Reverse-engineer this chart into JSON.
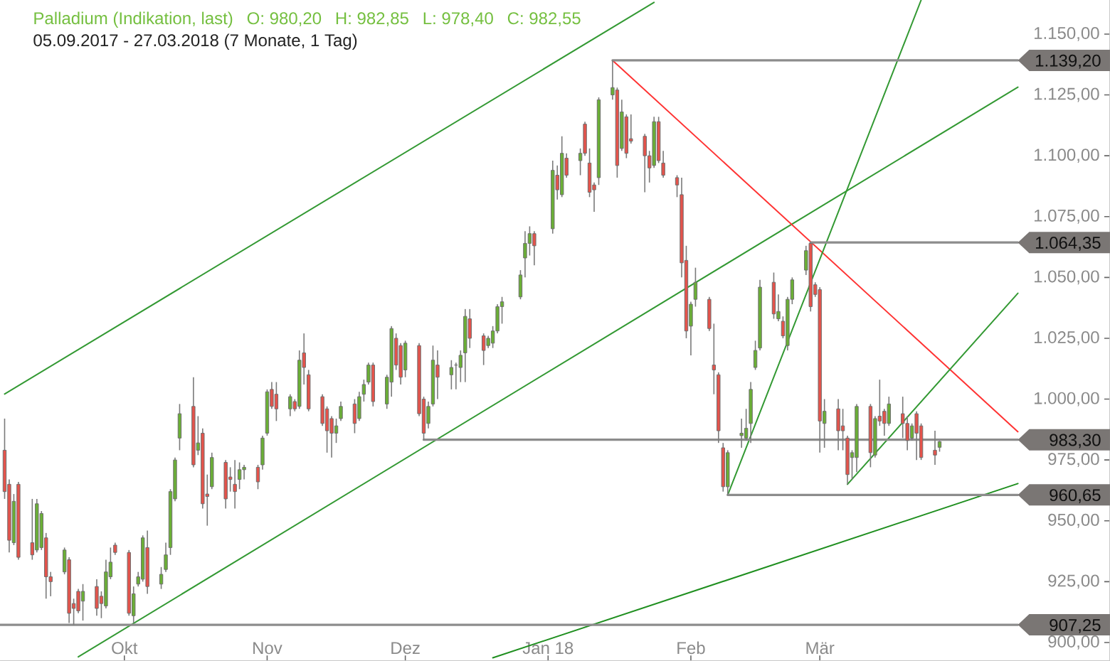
{
  "chart_data": {
    "type": "candlestick",
    "title": "Palladium (Indikation, last)",
    "subtitle": "05.09.2017 - 27.03.2018 (7 Monate, 1 Tag)",
    "annotations": [
      "O: 980,20",
      "H: 982,85",
      "L: 978,40",
      "C: 982,55"
    ],
    "x": [
      "2017-09-05",
      "2017-09-06",
      "2017-09-07",
      "2017-09-08",
      "2017-09-11",
      "2017-09-12",
      "2017-09-13",
      "2017-09-14",
      "2017-09-15",
      "2017-09-18",
      "2017-09-19",
      "2017-09-20",
      "2017-09-21",
      "2017-09-22",
      "2017-09-25",
      "2017-09-26",
      "2017-09-27",
      "2017-09-28",
      "2017-09-29",
      "2017-10-02",
      "2017-10-03",
      "2017-10-04",
      "2017-10-05",
      "2017-10-06",
      "2017-10-09",
      "2017-10-10",
      "2017-10-11",
      "2017-10-12",
      "2017-10-13",
      "2017-10-16",
      "2017-10-17",
      "2017-10-18",
      "2017-10-19",
      "2017-10-20",
      "2017-10-23",
      "2017-10-24",
      "2017-10-25",
      "2017-10-26",
      "2017-10-27",
      "2017-10-30",
      "2017-10-31",
      "2017-11-01",
      "2017-11-02",
      "2017-11-03",
      "2017-11-06",
      "2017-11-07",
      "2017-11-08",
      "2017-11-09",
      "2017-11-10",
      "2017-11-13",
      "2017-11-14",
      "2017-11-15",
      "2017-11-16",
      "2017-11-17",
      "2017-11-20",
      "2017-11-21",
      "2017-11-22",
      "2017-11-23",
      "2017-11-24",
      "2017-11-27",
      "2017-11-28",
      "2017-11-29",
      "2017-11-30",
      "2017-12-01",
      "2017-12-04",
      "2017-12-05",
      "2017-12-06",
      "2017-12-07",
      "2017-12-08",
      "2017-12-11",
      "2017-12-12",
      "2017-12-13",
      "2017-12-14",
      "2017-12-15",
      "2017-12-18",
      "2017-12-19",
      "2017-12-20",
      "2017-12-21",
      "2017-12-22",
      "2017-12-26",
      "2017-12-27",
      "2017-12-28",
      "2017-12-29",
      "2018-01-02",
      "2018-01-03",
      "2018-01-04",
      "2018-01-05",
      "2018-01-08",
      "2018-01-09",
      "2018-01-10",
      "2018-01-11",
      "2018-01-12",
      "2018-01-15",
      "2018-01-16",
      "2018-01-17",
      "2018-01-18",
      "2018-01-19",
      "2018-01-22",
      "2018-01-23",
      "2018-01-24",
      "2018-01-25",
      "2018-01-26",
      "2018-01-29",
      "2018-01-30",
      "2018-01-31",
      "2018-02-01",
      "2018-02-02",
      "2018-02-05",
      "2018-02-06",
      "2018-02-07",
      "2018-02-08",
      "2018-02-09",
      "2018-02-12",
      "2018-02-13",
      "2018-02-14",
      "2018-02-15",
      "2018-02-16",
      "2018-02-19",
      "2018-02-20",
      "2018-02-21",
      "2018-02-22",
      "2018-02-23",
      "2018-02-26",
      "2018-02-27",
      "2018-02-28",
      "2018-03-01",
      "2018-03-02",
      "2018-03-05",
      "2018-03-06",
      "2018-03-07",
      "2018-03-08",
      "2018-03-09",
      "2018-03-12",
      "2018-03-13",
      "2018-03-14",
      "2018-03-15",
      "2018-03-16",
      "2018-03-19",
      "2018-03-20",
      "2018-03-21",
      "2018-03-22",
      "2018-03-23",
      "2018-03-26",
      "2018-03-27"
    ],
    "ohlc": [
      [
        979,
        992,
        959,
        962
      ],
      [
        965,
        967,
        937,
        942
      ],
      [
        941,
        961,
        940,
        958
      ],
      [
        965,
        966,
        934,
        935
      ],
      [
        941,
        959,
        934,
        936
      ],
      [
        938,
        959,
        937,
        957
      ],
      [
        939,
        954,
        938,
        953
      ],
      [
        943,
        945,
        918,
        927
      ],
      [
        927,
        929,
        919,
        925
      ],
      [
        929,
        939,
        928,
        938
      ],
      [
        934,
        935,
        908,
        912
      ],
      [
        916,
        918,
        907.25,
        914
      ],
      [
        921,
        922,
        912,
        913
      ],
      [
        917,
        924,
        909,
        921
      ],
      [
        923,
        926,
        911,
        914
      ],
      [
        919,
        921,
        910,
        916
      ],
      [
        915,
        934,
        914,
        929
      ],
      [
        927,
        939,
        926,
        933
      ],
      [
        940,
        941,
        936,
        937
      ],
      [
        937,
        938,
        911,
        912
      ],
      [
        911,
        923,
        908,
        920
      ],
      [
        924,
        929,
        923,
        927
      ],
      [
        926,
        944,
        925,
        943
      ],
      [
        939,
        946,
        920,
        923
      ],
      [
        924,
        931,
        922,
        928
      ],
      [
        930,
        941,
        929,
        936
      ],
      [
        939,
        963,
        936,
        962
      ],
      [
        959,
        976,
        958,
        975
      ],
      [
        984,
        998,
        979,
        994
      ],
      [
        997,
        1009,
        972,
        973
      ],
      [
        979,
        993,
        977,
        982
      ],
      [
        986,
        988,
        955,
        957
      ],
      [
        961,
        969,
        948,
        960
      ],
      [
        964,
        978,
        963,
        976
      ],
      [
        974,
        975,
        955,
        959
      ],
      [
        968,
        972,
        962,
        967
      ],
      [
        965,
        975,
        955,
        962
      ],
      [
        967,
        974,
        963,
        971
      ],
      [
        971,
        973,
        967,
        972
      ],
      [
        972,
        973,
        963,
        966
      ],
      [
        973,
        985,
        971,
        984
      ],
      [
        986,
        1004,
        985,
        1003
      ],
      [
        1004,
        1007,
        996,
        997
      ],
      [
        1002,
        1007,
        991,
        996
      ],
      [
        996,
        1002,
        993,
        1001
      ],
      [
        999,
        1000,
        995,
        996
      ],
      [
        997,
        1020,
        996,
        1016
      ],
      [
        1019,
        1027,
        1006,
        1013
      ],
      [
        1010,
        1012,
        995,
        996
      ],
      [
        1001,
        1002,
        989,
        990
      ],
      [
        996,
        997,
        978,
        987
      ],
      [
        992,
        993,
        976,
        986
      ],
      [
        986,
        992,
        982,
        989
      ],
      [
        992,
        999,
        991,
        997
      ],
      [
        998,
        1000,
        986,
        990
      ],
      [
        992,
        1003,
        991,
        1001
      ],
      [
        1002,
        1008,
        999,
        1006
      ],
      [
        1007,
        1015,
        1006,
        1014
      ],
      [
        1014,
        1015,
        997,
        999
      ],
      [
        998,
        1010,
        996,
        1009
      ],
      [
        1007,
        1030,
        1001,
        1029
      ],
      [
        1025,
        1027,
        1012,
        1014
      ],
      [
        1022,
        1023,
        1006,
        1009
      ],
      [
        1012,
        1024,
        1009,
        1023
      ],
      [
        1022,
        1023,
        993,
        994
      ],
      [
        1000,
        1001,
        983.3,
        986
      ],
      [
        990,
        999,
        988,
        997
      ],
      [
        998,
        1022,
        997,
        1016
      ],
      [
        1014,
        1020,
        1000,
        1009
      ],
      [
        1010,
        1016,
        1004,
        1013
      ],
      [
        1014,
        1015,
        1004,
        1014
      ],
      [
        1013,
        1020,
        1007,
        1018
      ],
      [
        1019,
        1037,
        1007,
        1034
      ],
      [
        1033,
        1037,
        1021,
        1025
      ],
      [
        1026,
        1027,
        1014,
        1020
      ],
      [
        1022,
        1026,
        1021,
        1025
      ],
      [
        1023,
        1030,
        1021,
        1028
      ],
      [
        1028,
        1039,
        1027,
        1038
      ],
      [
        1038,
        1042,
        1031,
        1040
      ],
      [
        1042,
        1053,
        1041,
        1051
      ],
      [
        1058,
        1069,
        1050,
        1064
      ],
      [
        1064,
        1071,
        1059,
        1068
      ],
      [
        1068,
        1069,
        1055,
        1063
      ],
      [
        1070,
        1098,
        1068,
        1094
      ],
      [
        1092,
        1096,
        1082,
        1086
      ],
      [
        1084,
        1108,
        1083,
        1101
      ],
      [
        1099,
        1101,
        1091,
        1092
      ],
      [
        1098,
        1103,
        1092,
        1101
      ],
      [
        1113,
        1114,
        1100,
        1101
      ],
      [
        1097,
        1103,
        1083,
        1085
      ],
      [
        1088,
        1089,
        1077,
        1086
      ],
      [
        1091,
        1124,
        1088,
        1123
      ],
      [
        1125,
        1139.2,
        1123,
        1128
      ],
      [
        1127,
        1128,
        1091,
        1096
      ],
      [
        1103,
        1123,
        1102,
        1118
      ],
      [
        1116,
        1117,
        1099,
        1101
      ],
      [
        1107,
        1117,
        1105,
        1106
      ],
      [
        1108,
        1109,
        1085,
        1100
      ],
      [
        1100,
        1102,
        1089,
        1095
      ],
      [
        1096,
        1116,
        1095,
        1114
      ],
      [
        1114,
        1116,
        1097,
        1098
      ],
      [
        1097,
        1102,
        1091,
        1092
      ],
      [
        1091,
        1092,
        1083,
        1088
      ],
      [
        1084,
        1091,
        1050,
        1056
      ],
      [
        1057,
        1063,
        1025,
        1028
      ],
      [
        1030,
        1040,
        1018,
        1039
      ],
      [
        1041,
        1054,
        1038,
        1048
      ],
      [
        1041,
        1042,
        1028,
        1029
      ],
      [
        1014,
        1031,
        1002,
        1012
      ],
      [
        1010,
        1011,
        982,
        987
      ],
      [
        980,
        982,
        962,
        964
      ],
      [
        964,
        979,
        960.65,
        978
      ],
      [
        985,
        992,
        980,
        986
      ],
      [
        984,
        996,
        983,
        988
      ],
      [
        990,
        1007,
        982,
        1004
      ],
      [
        1013,
        1024,
        1012,
        1020
      ],
      [
        1021,
        1049,
        1020,
        1046
      ],
      [
        1048,
        1052,
        1033,
        1035
      ],
      [
        1033,
        1043,
        1032,
        1036
      ],
      [
        1032,
        1034,
        1025,
        1026
      ],
      [
        1022,
        1042,
        1020,
        1041
      ],
      [
        1041,
        1050,
        1039,
        1049
      ],
      [
        1053,
        1063,
        1051,
        1061
      ],
      [
        1064,
        1064.35,
        1036,
        1038
      ],
      [
        1047,
        1048,
        1042,
        1043
      ],
      [
        1045,
        1046,
        978,
        991
      ],
      [
        990,
        1000,
        980,
        995
      ],
      [
        996,
        1000,
        979,
        987
      ],
      [
        989,
        996,
        979,
        987
      ],
      [
        984,
        985,
        965,
        969
      ],
      [
        976,
        979,
        967,
        978
      ],
      [
        976,
        998,
        970,
        997
      ],
      [
        997,
        998,
        972,
        978
      ],
      [
        977,
        993,
        976,
        992
      ],
      [
        993,
        1008,
        989,
        991
      ],
      [
        995,
        996,
        985,
        990
      ],
      [
        990,
        1001,
        989,
        998
      ],
      [
        994,
        1001,
        984,
        990
      ],
      [
        990,
        993,
        979,
        983
      ],
      [
        984,
        990,
        983,
        989
      ],
      [
        994,
        995,
        975,
        986
      ],
      [
        989,
        990,
        975,
        976
      ],
      [
        979,
        987,
        973,
        977
      ],
      [
        980.2,
        982.85,
        978.4,
        982.55
      ]
    ],
    "series": [
      {
        "type": "line",
        "color": "#339933",
        "x": [
          "2017-09-05",
          "2018-01-24"
        ],
        "values": [
          1002.1,
          1163.0
        ]
      },
      {
        "type": "line",
        "color": "#339933",
        "x": [
          "2017-09-21",
          "2018-04-13"
        ],
        "values": [
          894.1,
          1128.2
        ]
      },
      {
        "type": "line",
        "color": "#1f8f1f",
        "x": [
          "2017-12-20",
          "2018-04-13"
        ],
        "values": [
          893.7,
          965.3
        ]
      },
      {
        "type": "line",
        "color": "#ff3333",
        "x": [
          "2018-01-15",
          "2018-04-13"
        ],
        "values": [
          1139.2,
          986.6
        ]
      },
      {
        "type": "line",
        "color": "#339933",
        "x": [
          "2018-02-09",
          "2018-03-23"
        ],
        "values": [
          960.65,
          1164.0
        ]
      },
      {
        "type": "line",
        "color": "#339933",
        "x": [
          "2018-03-07",
          "2018-04-13"
        ],
        "values": [
          965,
          1043.5
        ]
      },
      {
        "type": "line",
        "name": "1.139,20",
        "color": "#8c8c8c",
        "x": [
          "2018-01-15",
          "2018-04-13"
        ],
        "values": [
          1139.2,
          1139.2
        ]
      },
      {
        "type": "line",
        "name": "1.064,35",
        "color": "#8c8c8c",
        "x": [
          "2018-02-27",
          "2018-04-13"
        ],
        "values": [
          1064.35,
          1064.35
        ]
      },
      {
        "type": "line",
        "name": "983,30",
        "color": "#8c8c8c",
        "x": [
          "2017-12-05",
          "2018-04-13"
        ],
        "values": [
          983.3,
          983.3
        ]
      },
      {
        "type": "line",
        "name": "960,65",
        "color": "#8c8c8c",
        "x": [
          "2018-02-09",
          "2018-04-13"
        ],
        "values": [
          960.65,
          960.65
        ]
      },
      {
        "type": "line",
        "name": "907,25",
        "color": "#8c8c8c",
        "x": [
          "2017-09-04",
          "2018-04-13"
        ],
        "values": [
          907.25,
          907.25
        ]
      }
    ],
    "xlim": [
      "2017-09-04",
      "2018-05-03"
    ],
    "ylim": [
      892.4,
      1164
    ],
    "xticks": [
      {
        "value": "2017-10-01",
        "label": "Okt"
      },
      {
        "value": "2017-11-01",
        "label": "Nov"
      },
      {
        "value": "2017-12-01",
        "label": "Dez"
      },
      {
        "value": "2018-01-01",
        "label": "Jan 18"
      },
      {
        "value": "2018-02-01",
        "label": "Feb"
      },
      {
        "value": "2018-03-01",
        "label": "Mär"
      }
    ],
    "yticks": [
      {
        "value": 900,
        "label": "900,00"
      },
      {
        "value": 925,
        "label": "925,00"
      },
      {
        "value": 950,
        "label": "950,00"
      },
      {
        "value": 975,
        "label": "975,00"
      },
      {
        "value": 1000,
        "label": "1.000,00"
      },
      {
        "value": 1025,
        "label": "1.025,00"
      },
      {
        "value": 1050,
        "label": "1.050,00"
      },
      {
        "value": 1075,
        "label": "1.075,00"
      },
      {
        "value": 1100,
        "label": "1.100,00"
      },
      {
        "value": 1125,
        "label": "1.125,00"
      },
      {
        "value": 1150,
        "label": "1.150,00"
      }
    ]
  }
}
